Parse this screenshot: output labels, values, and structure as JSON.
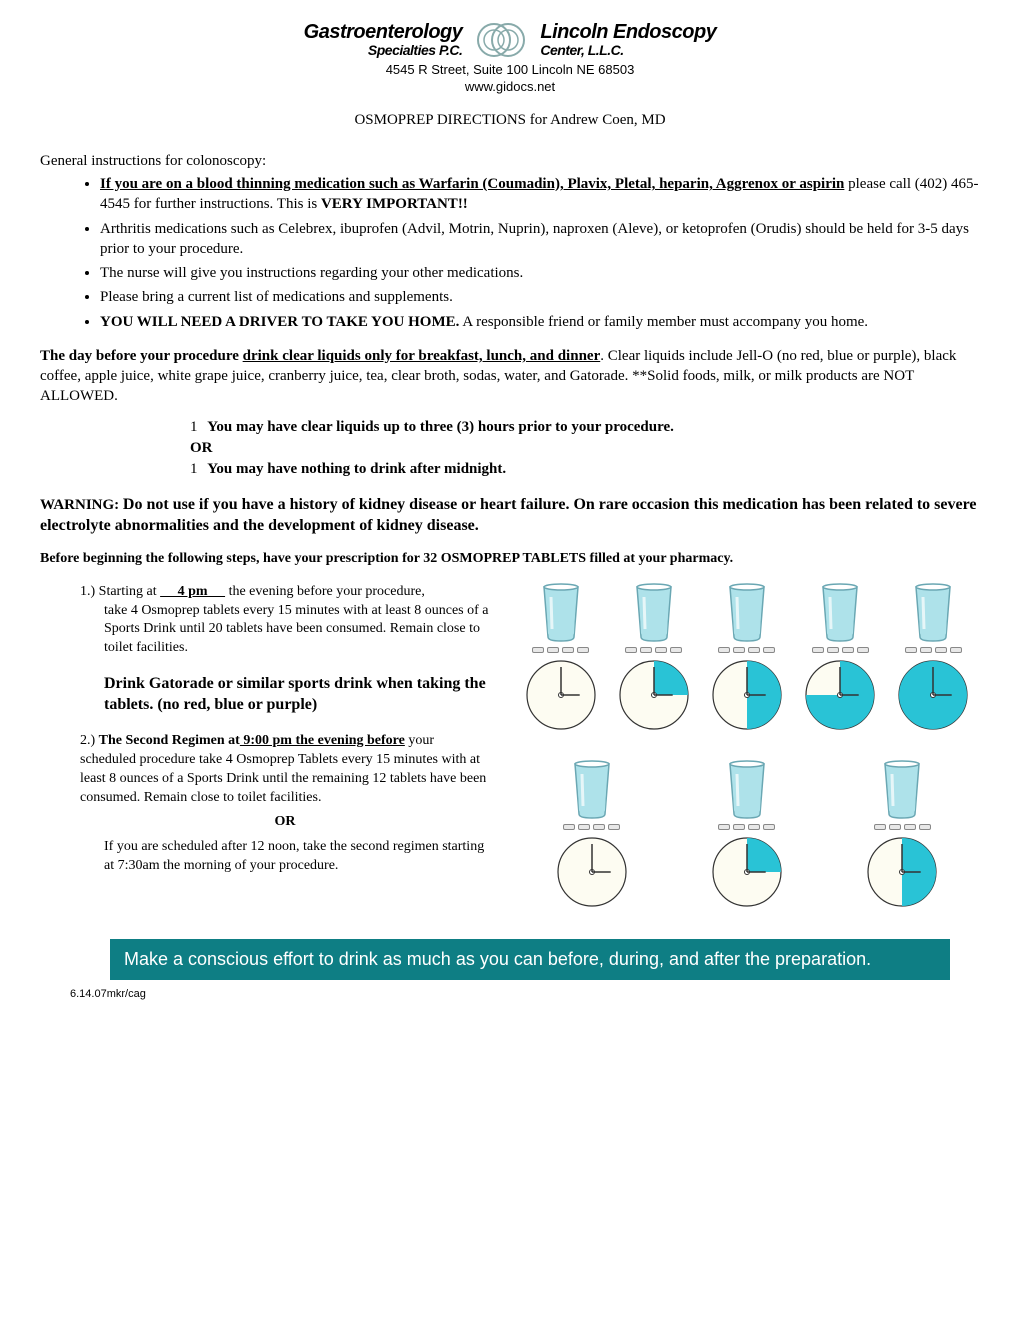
{
  "header": {
    "left_name": "Gastroenterology",
    "left_sub": "Specialties P.C.",
    "right_name": "Lincoln Endoscopy",
    "right_sub": "Center, L.L.C.",
    "address": "4545 R Street, Suite 100 Lincoln NE 68503",
    "website": "www.gidocs.net"
  },
  "title": "OSMOPREP DIRECTIONS for Andrew Coen, MD",
  "general_heading": "General instructions for colonoscopy:",
  "bullets": {
    "b1_lead": "If you are on a blood thinning medication such as Warfarin (Coumadin), Plavix, Pletal, heparin, Aggrenox or aspirin",
    "b1_mid": " please call (402) 465-4545 for further instructions.  This is ",
    "b1_tail": "VERY IMPORTANT!!",
    "b2": "Arthritis medications such as Celebrex, ibuprofen (Advil, Motrin, Nuprin), naproxen (Aleve), or ketoprofen (Orudis) should be held for 3-5 days prior to your procedure.",
    "b3": "The nurse will give you instructions regarding your other medications.",
    "b4": "Please bring a current list of medications and supplements.",
    "b5_lead": "YOU WILL NEED A DRIVER TO TAKE YOU HOME.",
    "b5_tail": "  A responsible friend or family member must accompany you home."
  },
  "day_before": {
    "lead": "The day before your procedure ",
    "underline": "drink clear liquids only for breakfast, lunch, and dinner",
    "tail": ".  Clear liquids include Jell-O (no red, blue or purple), black coffee, apple juice, white grape juice, cranberry juice, tea, clear broth, sodas, water, and Gatorade. **Solid foods, milk, or milk products are NOT ALLOWED."
  },
  "options": {
    "o1_num": "1",
    "o1": "You may have clear liquids up to three (3) hours prior to your procedure.",
    "or": "OR",
    "o2_num": "1",
    "o2": "You may have nothing to drink after midnight."
  },
  "warning": {
    "lead": "WARNING:  ",
    "body": "Do not use if you have a history of kidney disease or heart failure.  On rare occasion this medication has been related to severe electrolyte abnormalities and the development of kidney disease."
  },
  "prescript": "Before beginning the following steps, have your prescription for 32 OSMOPREP TABLETS filled at your pharmacy.",
  "steps": {
    "s1_pre": "1.) Starting at ",
    "s1_time": "     4 pm     ",
    "s1_post": " the evening before your procedure,",
    "s1_body": "take 4 Osmoprep tablets every 15 minutes with at least 8 ounces of a Sports Drink until 20 tablets have been consumed.  Remain close to toilet facilities.",
    "sports": "Drink Gatorade or similar sports drink when taking the tablets.   (no red, blue or purple)",
    "s2_pre": "2.) ",
    "s2_bold": "The Second Regimen at",
    "s2_ub": " 9:00 pm the evening before",
    "s2_body": " your scheduled procedure take 4 Osmoprep Tablets every 15 minutes with at least 8 ounces of a Sports Drink until the remaining 12 tablets have been consumed.  Remain close to toilet facilities.",
    "or": "OR",
    "alt": "If you are scheduled after 12 noon, take the second regimen starting at 7:30am the morning of your procedure."
  },
  "diagram": {
    "row1_clocks": [
      {
        "fill": 0.0
      },
      {
        "fill": 0.25
      },
      {
        "fill": 0.5
      },
      {
        "fill": 0.75
      },
      {
        "fill": 1.0
      }
    ],
    "row2_clocks": [
      {
        "fill": 0.0
      },
      {
        "fill": 0.25
      },
      {
        "fill": 0.5
      }
    ],
    "glass_fill_color": "#aee2ea",
    "glass_stroke_color": "#6aa7b3",
    "clock_fill_color": "#29c3d6",
    "clock_stroke_color": "#333333",
    "clock_bg_color": "#fdfcf2",
    "clock_radius": 34
  },
  "banner": "Make a conscious effort to drink as much as you can before, during, and after the preparation.",
  "footer": "6.14.07mkr/cag"
}
